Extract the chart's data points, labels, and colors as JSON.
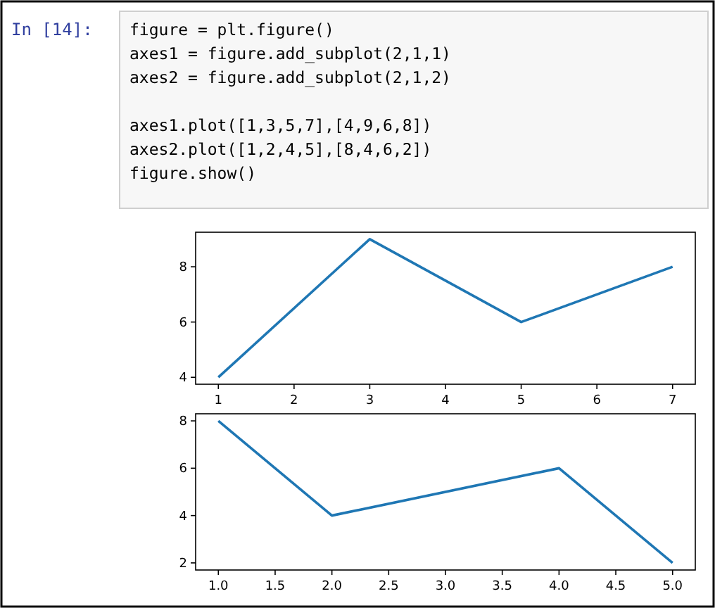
{
  "chart_data": [
    {
      "type": "line",
      "annotations": [
        "In [14]:",
        "figure = plt.figure()\naxes1 = figure.add_subplot(2,1,1)\naxes2 = figure.add_subplot(2,1,2)\n\naxes1.plot([1,3,5,7],[4,9,6,8])\naxes2.plot([1,2,4,5],[8,4,6,2])\nfigure.show()"
      ],
      "x": [
        1,
        3,
        5,
        7
      ],
      "series": [
        {
          "color": "#1f77b4",
          "values": [
            4,
            9,
            6,
            8
          ]
        }
      ],
      "xlim": [
        0.7,
        7.3
      ],
      "ylim": [
        3.75,
        9.25
      ],
      "xticks": [
        1,
        2,
        3,
        4,
        5,
        6,
        7
      ],
      "yticks": [
        4,
        6,
        8
      ]
    },
    {
      "type": "line",
      "x": [
        1,
        2,
        4,
        5
      ],
      "series": [
        {
          "color": "#1f77b4",
          "values": [
            8,
            4,
            6,
            2
          ]
        }
      ],
      "xlim": [
        0.8,
        5.2
      ],
      "ylim": [
        1.7,
        8.3
      ],
      "xticks": [
        {
          "value": 1,
          "label": "1.0"
        },
        {
          "value": 1.5,
          "label": "1.5"
        },
        {
          "value": 2,
          "label": "2.0"
        },
        {
          "value": 2.5,
          "label": "2.5"
        },
        {
          "value": 3,
          "label": "3.0"
        },
        {
          "value": 3.5,
          "label": "3.5"
        },
        {
          "value": 4,
          "label": "4.0"
        },
        {
          "value": 4.5,
          "label": "4.5"
        },
        {
          "value": 5,
          "label": "5.0"
        }
      ],
      "yticks": [
        2,
        4,
        6,
        8
      ]
    }
  ]
}
